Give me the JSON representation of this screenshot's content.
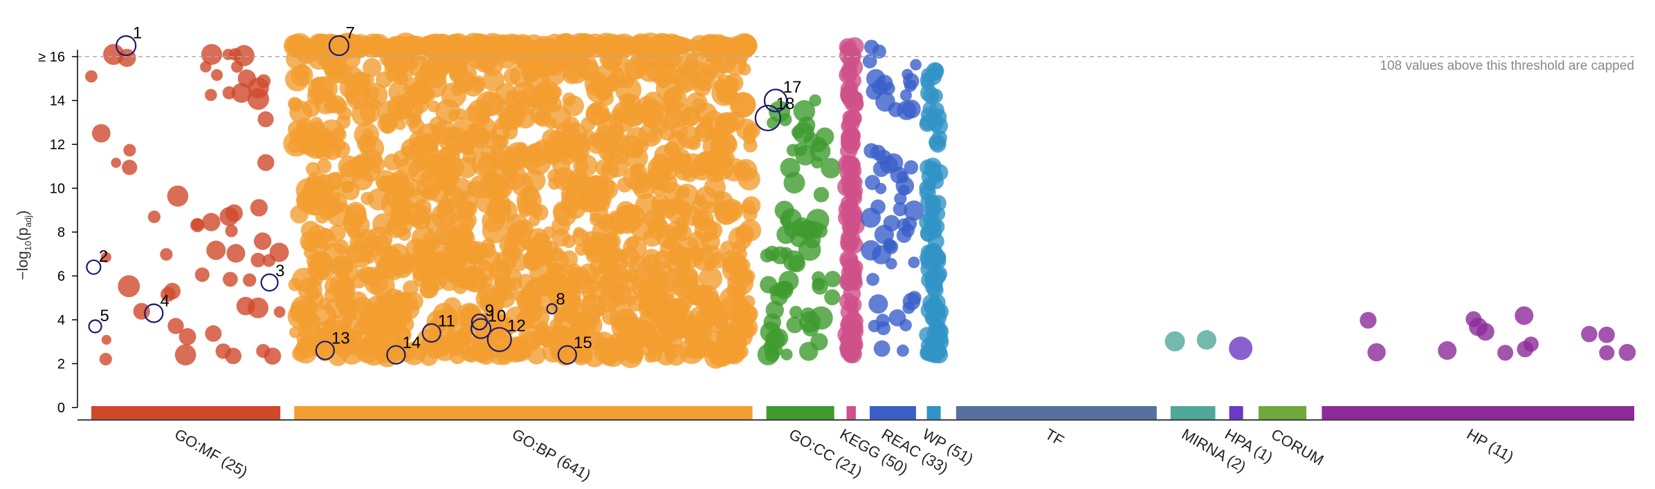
{
  "chart_data": {
    "type": "scatter",
    "title": "",
    "xlabel": "",
    "ylabel": "−log₁₀(p_adj)",
    "ylabel_main": "−log",
    "ylabel_sub": "10",
    "ylabel_paren_open": "(p",
    "ylabel_sub2": "adj",
    "ylabel_paren_close": ")",
    "ylim": [
      0,
      16.5
    ],
    "y_ticks": [
      0,
      2,
      4,
      6,
      8,
      10,
      12,
      14,
      16
    ],
    "y_tick_labels": [
      "0",
      "2",
      "4",
      "6",
      "8",
      "10",
      "12",
      "14",
      "≥ 16"
    ],
    "threshold": 16,
    "threshold_note": "108 values above this threshold are capped",
    "grid": false,
    "legend": "none",
    "sources": [
      {
        "key": "gomf",
        "label": "GO:MF (25)",
        "color": "#d0482a",
        "start": 0,
        "end": 0.1225
      },
      {
        "key": "gobp",
        "label": "GO:BP (641)",
        "color": "#f29e30",
        "start": 0.1315,
        "end": 0.4285
      },
      {
        "key": "gocc",
        "label": "GO:CC (21)",
        "color": "#3f9b2e",
        "start": 0.4375,
        "end": 0.4815
      },
      {
        "key": "kegg",
        "label": "KEGG (50)",
        "color": "#d0508a",
        "start": 0.4895,
        "end": 0.4955
      },
      {
        "key": "reac",
        "label": "REAC (33)",
        "color": "#3a5fc9",
        "start": 0.5045,
        "end": 0.5345
      },
      {
        "key": "wp",
        "label": "WP (51)",
        "color": "#3193c6",
        "start": 0.5415,
        "end": 0.5505
      },
      {
        "key": "tf",
        "label": "TF",
        "color": "#56709f",
        "start": 0.5605,
        "end": 0.6905
      },
      {
        "key": "mirna",
        "label": "MIRNA (2)",
        "color": "#50a89a",
        "start": 0.6995,
        "end": 0.7285
      },
      {
        "key": "hpa",
        "label": "HPA (1)",
        "color": "#6a3ac2",
        "start": 0.7375,
        "end": 0.7465
      },
      {
        "key": "corum",
        "label": "CORUM",
        "color": "#70a83a",
        "start": 0.7565,
        "end": 0.7875
      },
      {
        "key": "hp",
        "label": "HP (11)",
        "color": "#8c2a9a",
        "start": 0.7975,
        "end": 1.0
      }
    ],
    "highlighted": [
      {
        "id": "1",
        "x": 0.0225,
        "y": 16.5,
        "r": 14
      },
      {
        "id": "2",
        "x": 0.0015,
        "y": 6.4,
        "r": 10
      },
      {
        "id": "3",
        "x": 0.1155,
        "y": 5.7,
        "r": 12
      },
      {
        "id": "4",
        "x": 0.0405,
        "y": 4.3,
        "r": 13
      },
      {
        "id": "5",
        "x": 0.0025,
        "y": 3.7,
        "r": 9
      },
      {
        "id": "7",
        "x": 0.1605,
        "y": 16.5,
        "r": 14
      },
      {
        "id": "8",
        "x": 0.2985,
        "y": 4.5,
        "r": 7
      },
      {
        "id": "9",
        "x": 0.2515,
        "y": 3.9,
        "r": 11
      },
      {
        "id": "10",
        "x": 0.2525,
        "y": 3.6,
        "r": 14
      },
      {
        "id": "11",
        "x": 0.2205,
        "y": 3.4,
        "r": 13
      },
      {
        "id": "12",
        "x": 0.2645,
        "y": 3.1,
        "r": 17
      },
      {
        "id": "13",
        "x": 0.1515,
        "y": 2.6,
        "r": 13
      },
      {
        "id": "14",
        "x": 0.1975,
        "y": 2.4,
        "r": 13
      },
      {
        "id": "15",
        "x": 0.3085,
        "y": 2.4,
        "r": 13
      },
      {
        "id": "17",
        "x": 0.4435,
        "y": 14.0,
        "r": 16
      },
      {
        "id": "18",
        "x": 0.4385,
        "y": 13.2,
        "r": 18
      }
    ]
  }
}
